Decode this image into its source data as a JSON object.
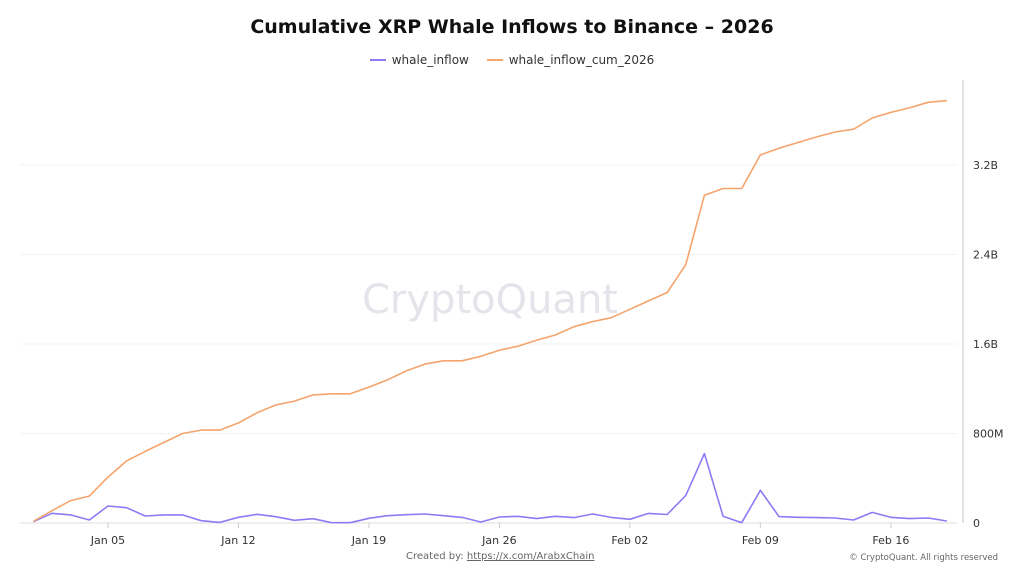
{
  "chart_data": {
    "type": "line",
    "title": "Cumulative XRP Whale Inflows to Binance – 2026",
    "legend_position": "top",
    "grid": true,
    "x_start": "2026-01-01",
    "x_end": "2026-02-19",
    "x_tick_labels": [
      "Jan 05",
      "Jan 12",
      "Jan 19",
      "Jan 26",
      "Feb 02",
      "Feb 09",
      "Feb 16"
    ],
    "y_tick_labels": [
      "0",
      "800M",
      "1.6B",
      "2.4B",
      "3.2B"
    ],
    "y_unit": "millions",
    "ylim": [
      0,
      4000
    ],
    "y_axis_side": "right",
    "series": [
      {
        "name": "whale_inflow",
        "color": "#8b7cf6",
        "values": [
          12,
          87,
          72,
          27,
          152,
          137,
          63,
          72,
          72,
          21,
          5,
          51,
          78,
          56,
          24,
          38,
          3,
          3,
          42,
          65,
          74,
          80,
          65,
          50,
          9,
          54,
          60,
          39,
          60,
          48,
          80,
          50,
          33,
          86,
          76,
          247,
          620,
          60,
          3,
          292,
          57,
          51,
          48,
          45,
          27,
          95,
          51,
          39,
          45,
          18
        ]
      },
      {
        "name": "whale_inflow_cum_2026",
        "color": "#f4a46c",
        "values": [
          15,
          110,
          200,
          240,
          410,
          555,
          640,
          720,
          800,
          830,
          830,
          895,
          985,
          1055,
          1090,
          1145,
          1155,
          1155,
          1215,
          1280,
          1360,
          1420,
          1450,
          1450,
          1490,
          1545,
          1580,
          1635,
          1680,
          1755,
          1800,
          1835,
          1910,
          1985,
          2060,
          2310,
          2930,
          2990,
          2990,
          3290,
          3350,
          3400,
          3450,
          3495,
          3520,
          3620,
          3670,
          3710,
          3760,
          3775
        ]
      }
    ]
  },
  "watermark": "CryptoQuant",
  "footer": {
    "created_by_label": "Created by:",
    "created_by_link": "https://x.com/ArabxChain",
    "copyright": "© CryptoQuant. All rights reserved"
  }
}
